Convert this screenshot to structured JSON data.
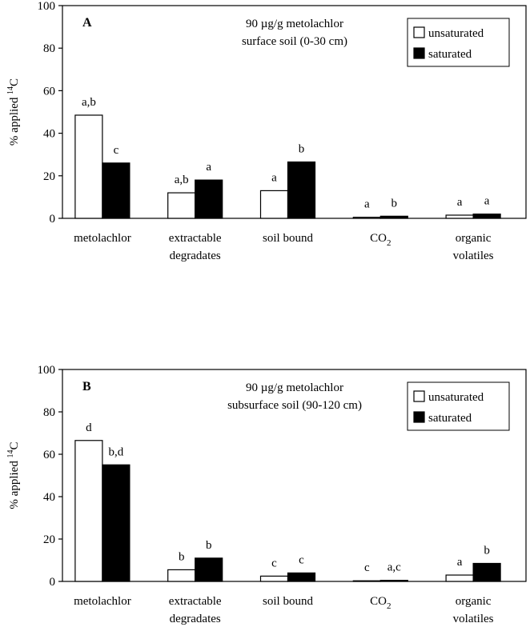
{
  "chart_data": [
    {
      "type": "bar",
      "panel_label": "A",
      "annotation_lines": [
        "90 µg/g metolachlor",
        "surface soil (0-30 cm)"
      ],
      "ylabel": "% applied",
      "ylabel_superscript": "14",
      "ylabel_suffix": "C",
      "ylim": [
        0,
        100
      ],
      "yticks": [
        "0",
        "20",
        "40",
        "60",
        "80",
        "100"
      ],
      "grid": false,
      "legend_position": "top-right",
      "categories": [
        {
          "lines": [
            "metolachlor"
          ]
        },
        {
          "lines": [
            "extractable",
            "degradates"
          ]
        },
        {
          "lines": [
            "soil bound"
          ]
        },
        {
          "lines": [
            "CO",
            "2"
          ],
          "subscript": true
        },
        {
          "lines": [
            "organic",
            "volatiles"
          ]
        }
      ],
      "series": [
        {
          "name": "unsaturated",
          "fill": "#ffffff",
          "values": [
            48.5,
            12,
            13,
            0.5,
            1.5
          ],
          "labels": [
            "a,b",
            "a,b",
            "a",
            "a",
            "a"
          ]
        },
        {
          "name": "saturated",
          "fill": "#000000",
          "values": [
            26,
            18,
            26.5,
            1,
            2
          ],
          "labels": [
            "c",
            "a",
            "b",
            "b",
            "a"
          ]
        }
      ]
    },
    {
      "type": "bar",
      "panel_label": "B",
      "annotation_lines": [
        "90 µg/g metolachlor",
        "subsurface soil (90-120 cm)"
      ],
      "ylabel": "% applied",
      "ylabel_superscript": "14",
      "ylabel_suffix": "C",
      "ylim": [
        0,
        100
      ],
      "yticks": [
        "0",
        "20",
        "40",
        "60",
        "80",
        "100"
      ],
      "grid": false,
      "legend_position": "top-right",
      "categories": [
        {
          "lines": [
            "metolachlor"
          ]
        },
        {
          "lines": [
            "extractable",
            "degradates"
          ]
        },
        {
          "lines": [
            "soil bound"
          ]
        },
        {
          "lines": [
            "CO",
            "2"
          ],
          "subscript": true
        },
        {
          "lines": [
            "organic",
            "volatiles"
          ]
        }
      ],
      "series": [
        {
          "name": "unsaturated",
          "fill": "#ffffff",
          "values": [
            66.5,
            5.5,
            2.5,
            0.3,
            3
          ],
          "labels": [
            "d",
            "b",
            "c",
            "c",
            "a"
          ]
        },
        {
          "name": "saturated",
          "fill": "#000000",
          "values": [
            55,
            11,
            4,
            0.5,
            8.5
          ],
          "labels": [
            "b,d",
            "b",
            "c",
            "a,c",
            "b"
          ]
        }
      ]
    }
  ]
}
